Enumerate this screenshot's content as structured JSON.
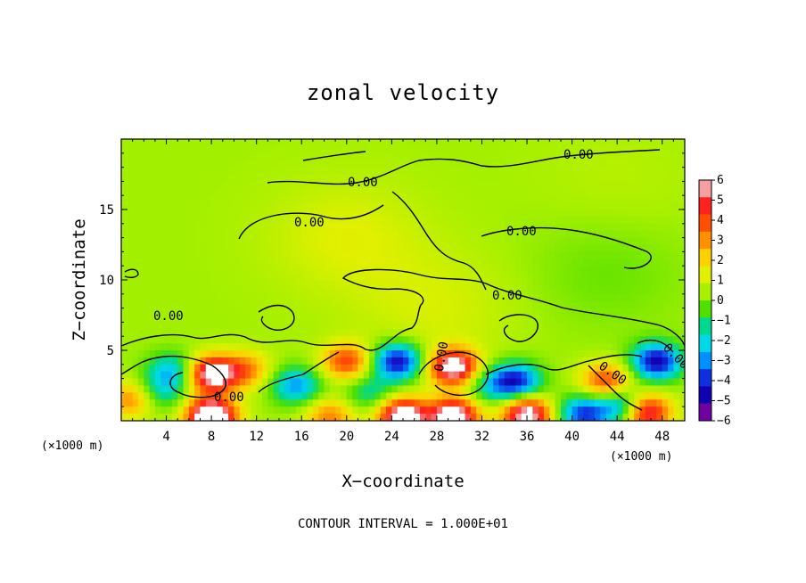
{
  "chart_data": {
    "type": "heatmap",
    "title": "zonal velocity",
    "xlabel": "X−coordinate",
    "ylabel": "Z−coordinate",
    "x_unit_label": "(×1000 m)",
    "x_unit_label_right": "(×1000 m)",
    "xlim": [
      0,
      50
    ],
    "ylim": [
      0,
      20
    ],
    "x_ticks": [
      "4",
      "8",
      "12",
      "16",
      "20",
      "24",
      "28",
      "32",
      "36",
      "40",
      "44",
      "48"
    ],
    "x_tick_values": [
      4,
      8,
      12,
      16,
      20,
      24,
      28,
      32,
      36,
      40,
      44,
      48
    ],
    "y_ticks": [
      "5",
      "10",
      "15"
    ],
    "y_tick_values": [
      5,
      10,
      15
    ],
    "colorbar": {
      "range": [
        -6,
        6
      ],
      "ticks": [
        "6",
        "5",
        "4",
        "3",
        "2",
        "1",
        "0",
        "−1",
        "−2",
        "−3",
        "−4",
        "−5",
        "−6"
      ],
      "tick_values": [
        6,
        5,
        4,
        3,
        2,
        1,
        0,
        -1,
        -2,
        -3,
        -4,
        -5,
        -6
      ],
      "colors": [
        "#f4a0a0",
        "#ff2020",
        "#ff5000",
        "#ff9000",
        "#ffd000",
        "#e0f000",
        "#a8f000",
        "#50e000",
        "#00d890",
        "#00d8e8",
        "#0090ff",
        "#1030e0",
        "#1000b0",
        "#7000a0"
      ]
    },
    "contour_labels": [
      "0.00",
      "0.00",
      "0.00",
      "0.00",
      "0.00",
      "0.00",
      "0.00",
      "0.00",
      "0.00",
      "0.00"
    ],
    "footer": "CONTOUR INTERVAL = 1.000E+01",
    "features": [
      {
        "x": 8,
        "z": 3.3,
        "value": 6.5
      },
      {
        "x": 8,
        "z": 0.3,
        "value": 8
      },
      {
        "x": 4.5,
        "z": 3.5,
        "value": -3
      },
      {
        "x": 11,
        "z": 3.6,
        "value": 3
      },
      {
        "x": 15.5,
        "z": 2.5,
        "value": -3.5
      },
      {
        "x": 20,
        "z": 4.2,
        "value": 4
      },
      {
        "x": 18.5,
        "z": 0.3,
        "value": 3
      },
      {
        "x": 24.5,
        "z": 4.2,
        "value": -5.5
      },
      {
        "x": 25,
        "z": 0.3,
        "value": 7
      },
      {
        "x": 29.5,
        "z": 3.8,
        "value": 6.5
      },
      {
        "x": 29.5,
        "z": 0.3,
        "value": 7
      },
      {
        "x": 35,
        "z": 2.8,
        "value": -5
      },
      {
        "x": 36,
        "z": 0.4,
        "value": 6.5
      },
      {
        "x": 41,
        "z": 0.5,
        "value": -4.5
      },
      {
        "x": 43,
        "z": 2.8,
        "value": 4
      },
      {
        "x": 46.5,
        "z": 0.6,
        "value": 6
      },
      {
        "x": 47.5,
        "z": 4.2,
        "value": -5.5
      },
      {
        "x": 44.5,
        "z": 1.0,
        "value": -4
      },
      {
        "x": 3.5,
        "z": 2.0,
        "value": -2
      },
      {
        "x": 0.8,
        "z": 1.5,
        "value": 3
      },
      {
        "x": 32.5,
        "z": 2.5,
        "value": -2
      },
      {
        "x": 22,
        "z": 2.0,
        "value": -2
      },
      {
        "x": 28,
        "z": 8,
        "value": 0.8
      },
      {
        "x": 20,
        "z": 13,
        "value": 1.0
      },
      {
        "x": 43,
        "z": 10.5,
        "value": -0.6
      },
      {
        "x": 44,
        "z": 17,
        "value": 0.3
      }
    ]
  }
}
